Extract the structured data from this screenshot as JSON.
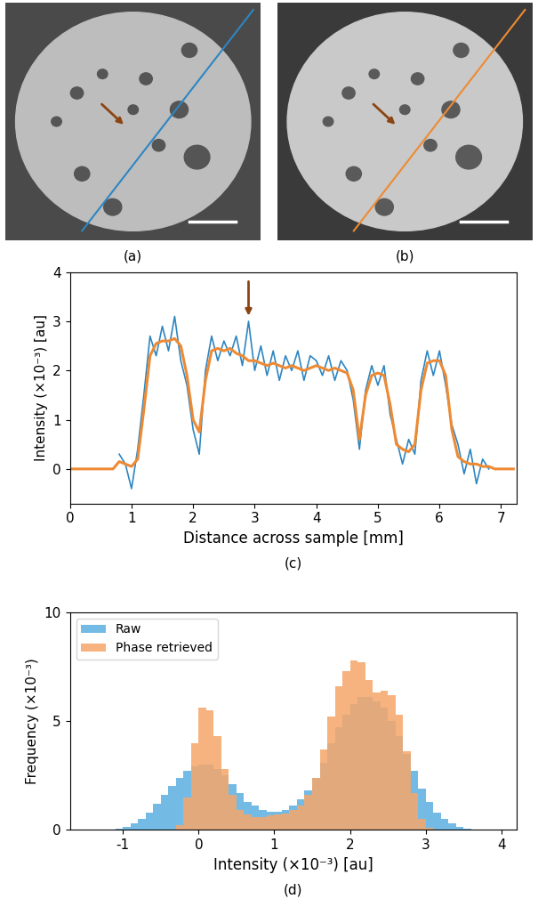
{
  "chart_data": [
    {
      "type": "image",
      "label": "(a)",
      "color": "#2e86c1",
      "tick_labels": false
    },
    {
      "type": "image",
      "label": "(b)",
      "color": "#ee8a33",
      "tick_labels": false
    },
    {
      "type": "line",
      "label": "(c)",
      "x_label": "Distance across sample [mm]",
      "y_label": "Intensity (×10⁻³) [au]",
      "x": [
        0.0,
        0.1,
        0.2,
        0.3,
        0.4,
        0.5,
        0.6,
        0.7,
        0.8,
        0.9,
        1.0,
        1.1,
        1.2,
        1.3,
        1.4,
        1.5,
        1.6,
        1.7,
        1.8,
        1.9,
        2.0,
        2.1,
        2.2,
        2.3,
        2.4,
        2.5,
        2.6,
        2.7,
        2.8,
        2.9,
        3.0,
        3.1,
        3.2,
        3.3,
        3.4,
        3.5,
        3.6,
        3.7,
        3.8,
        3.9,
        4.0,
        4.1,
        4.2,
        4.3,
        4.4,
        4.5,
        4.6,
        4.7,
        4.8,
        4.9,
        5.0,
        5.1,
        5.2,
        5.3,
        5.4,
        5.5,
        5.6,
        5.7,
        5.8,
        5.9,
        6.0,
        6.1,
        6.2,
        6.3,
        6.4,
        6.5,
        6.6,
        6.7,
        6.8,
        6.9,
        7.0,
        7.1,
        7.2
      ],
      "series": [
        {
          "name": "Raw",
          "color": "#2e86c1",
          "values": [
            null,
            null,
            null,
            null,
            null,
            null,
            null,
            null,
            0.3,
            0.1,
            -0.4,
            0.4,
            1.5,
            2.7,
            2.3,
            2.9,
            2.4,
            3.1,
            2.2,
            1.7,
            0.8,
            0.3,
            2.0,
            2.7,
            2.2,
            2.6,
            2.3,
            2.7,
            2.1,
            3.0,
            2.0,
            2.5,
            1.9,
            2.4,
            1.8,
            2.3,
            2.0,
            2.4,
            1.8,
            2.3,
            2.2,
            1.9,
            2.3,
            1.8,
            2.2,
            2.0,
            1.4,
            0.4,
            1.6,
            2.1,
            1.7,
            2.1,
            1.1,
            0.6,
            0.1,
            0.6,
            0.3,
            1.8,
            2.4,
            1.9,
            2.4,
            1.7,
            0.9,
            0.5,
            -0.1,
            0.4,
            -0.3,
            0.2,
            0.0,
            null,
            null,
            null,
            null
          ]
        },
        {
          "name": "Phase retrieved",
          "color": "#ee8a33",
          "values": [
            0,
            0,
            0,
            0,
            0,
            0,
            0,
            0,
            0.15,
            0.1,
            0.05,
            0.2,
            1.2,
            2.3,
            2.55,
            2.6,
            2.6,
            2.65,
            2.5,
            1.9,
            1.0,
            0.75,
            1.8,
            2.4,
            2.45,
            2.4,
            2.45,
            2.35,
            2.3,
            2.2,
            2.2,
            2.15,
            2.1,
            2.15,
            2.1,
            2.05,
            2.1,
            2.05,
            2.0,
            2.05,
            2.1,
            2.05,
            2.0,
            2.05,
            2.0,
            1.95,
            1.6,
            0.6,
            1.5,
            1.9,
            1.95,
            1.9,
            1.3,
            0.5,
            0.4,
            0.35,
            0.5,
            1.6,
            2.15,
            2.2,
            2.2,
            1.9,
            0.8,
            0.25,
            0.15,
            0.1,
            0.1,
            0.05,
            0.05,
            0,
            0,
            0,
            0
          ]
        }
      ],
      "xlim": [
        0,
        7.25
      ],
      "xticks": [
        0,
        1,
        2,
        3,
        4,
        5,
        6,
        7
      ],
      "ylim": [
        -0.7,
        4
      ],
      "yticks": [
        0,
        1,
        2,
        3,
        4
      ]
    },
    {
      "type": "histogram",
      "label": "(d)",
      "x_label": "Intensity (×10⁻³) [au]",
      "y_label": "Frequency (×10⁻³)",
      "bins": [
        -1.2,
        -1.1,
        -1.0,
        -0.9,
        -0.8,
        -0.7,
        -0.6,
        -0.5,
        -0.4,
        -0.3,
        -0.2,
        -0.1,
        0.0,
        0.1,
        0.2,
        0.3,
        0.4,
        0.5,
        0.6,
        0.7,
        0.8,
        0.9,
        1.0,
        1.1,
        1.2,
        1.3,
        1.4,
        1.5,
        1.6,
        1.7,
        1.8,
        1.9,
        2.0,
        2.1,
        2.2,
        2.3,
        2.4,
        2.5,
        2.6,
        2.7,
        2.8,
        2.9,
        3.0,
        3.1,
        3.2,
        3.3,
        3.4,
        3.5,
        3.6,
        3.7,
        3.8,
        3.9,
        4.0
      ],
      "series": [
        {
          "name": "Raw",
          "color": "#5aaee0",
          "values": [
            0,
            0.05,
            0.15,
            0.3,
            0.5,
            0.8,
            1.2,
            1.6,
            2.0,
            2.4,
            2.7,
            2.9,
            3.0,
            3.0,
            2.8,
            2.5,
            2.1,
            1.7,
            1.3,
            1.1,
            0.9,
            0.85,
            0.85,
            0.9,
            1.1,
            1.4,
            1.8,
            2.4,
            3.1,
            4.0,
            4.7,
            5.3,
            5.8,
            6.1,
            6.1,
            5.9,
            5.6,
            5.0,
            4.3,
            3.5,
            2.7,
            1.9,
            1.3,
            0.8,
            0.5,
            0.3,
            0.15,
            0.07,
            0.03,
            0.01,
            0,
            0
          ]
        },
        {
          "name": "Phase retrieved",
          "color": "#f5a66a",
          "values": [
            0,
            0,
            0,
            0,
            0,
            0,
            0,
            0,
            0,
            0.2,
            1.5,
            4.0,
            5.6,
            5.5,
            4.3,
            2.8,
            1.6,
            0.9,
            0.7,
            0.6,
            0.6,
            0.65,
            0.7,
            0.75,
            0.9,
            1.1,
            1.6,
            2.4,
            3.7,
            5.2,
            6.6,
            7.3,
            7.8,
            7.7,
            6.9,
            6.3,
            6.4,
            6.2,
            5.3,
            3.6,
            1.7,
            0.5,
            0.1,
            0,
            0,
            0,
            0,
            0,
            0,
            0,
            0,
            0
          ]
        }
      ],
      "xlim": [
        -1.7,
        4.2
      ],
      "xticks": [
        -1,
        0,
        1,
        2,
        3,
        4
      ],
      "ylim": [
        0,
        10
      ],
      "yticks": [
        0,
        5,
        10
      ],
      "legend": "upper left"
    }
  ]
}
